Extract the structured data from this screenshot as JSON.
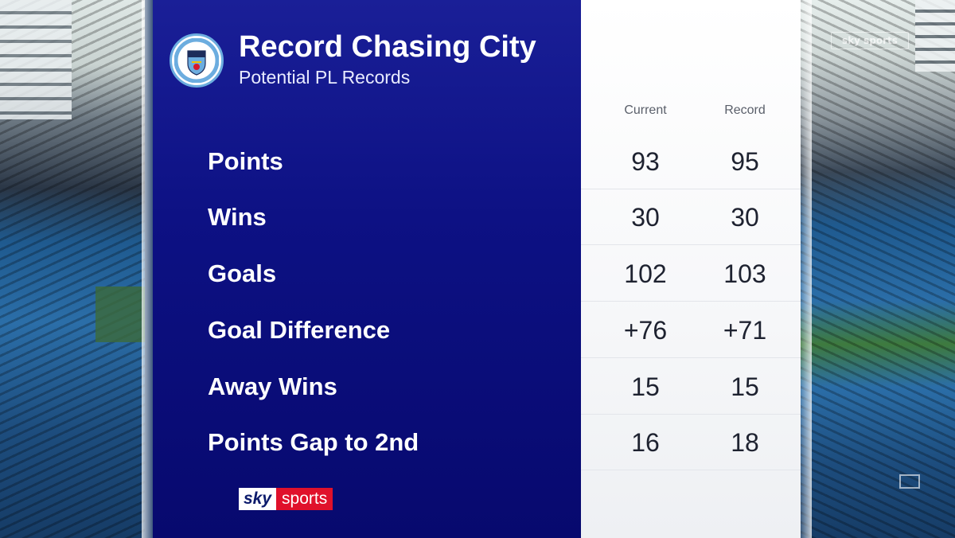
{
  "header": {
    "title": "Record Chasing City",
    "subtitle": "Potential PL Records",
    "crest_icon": "manchester-city-crest",
    "crest_text": "MANCHESTER CITY"
  },
  "columns": {
    "current": "Current",
    "record": "Record"
  },
  "rows": [
    {
      "label": "Points",
      "current": "93",
      "record": "95"
    },
    {
      "label": "Wins",
      "current": "30",
      "record": "30"
    },
    {
      "label": "Goals",
      "current": "102",
      "record": "103"
    },
    {
      "label": "Goal Difference",
      "current": "+76",
      "record": "+71"
    },
    {
      "label": "Away Wins",
      "current": "15",
      "record": "15"
    },
    {
      "label": "Points Gap to 2nd",
      "current": "16",
      "record": "18"
    }
  ],
  "branding": {
    "sky": "sky",
    "sports": "sports",
    "watermark": "sky sports"
  },
  "colors": {
    "panel_blue": "#0d1184",
    "sky_sports_red": "#e0112b",
    "city_blue": "#6caddf"
  }
}
